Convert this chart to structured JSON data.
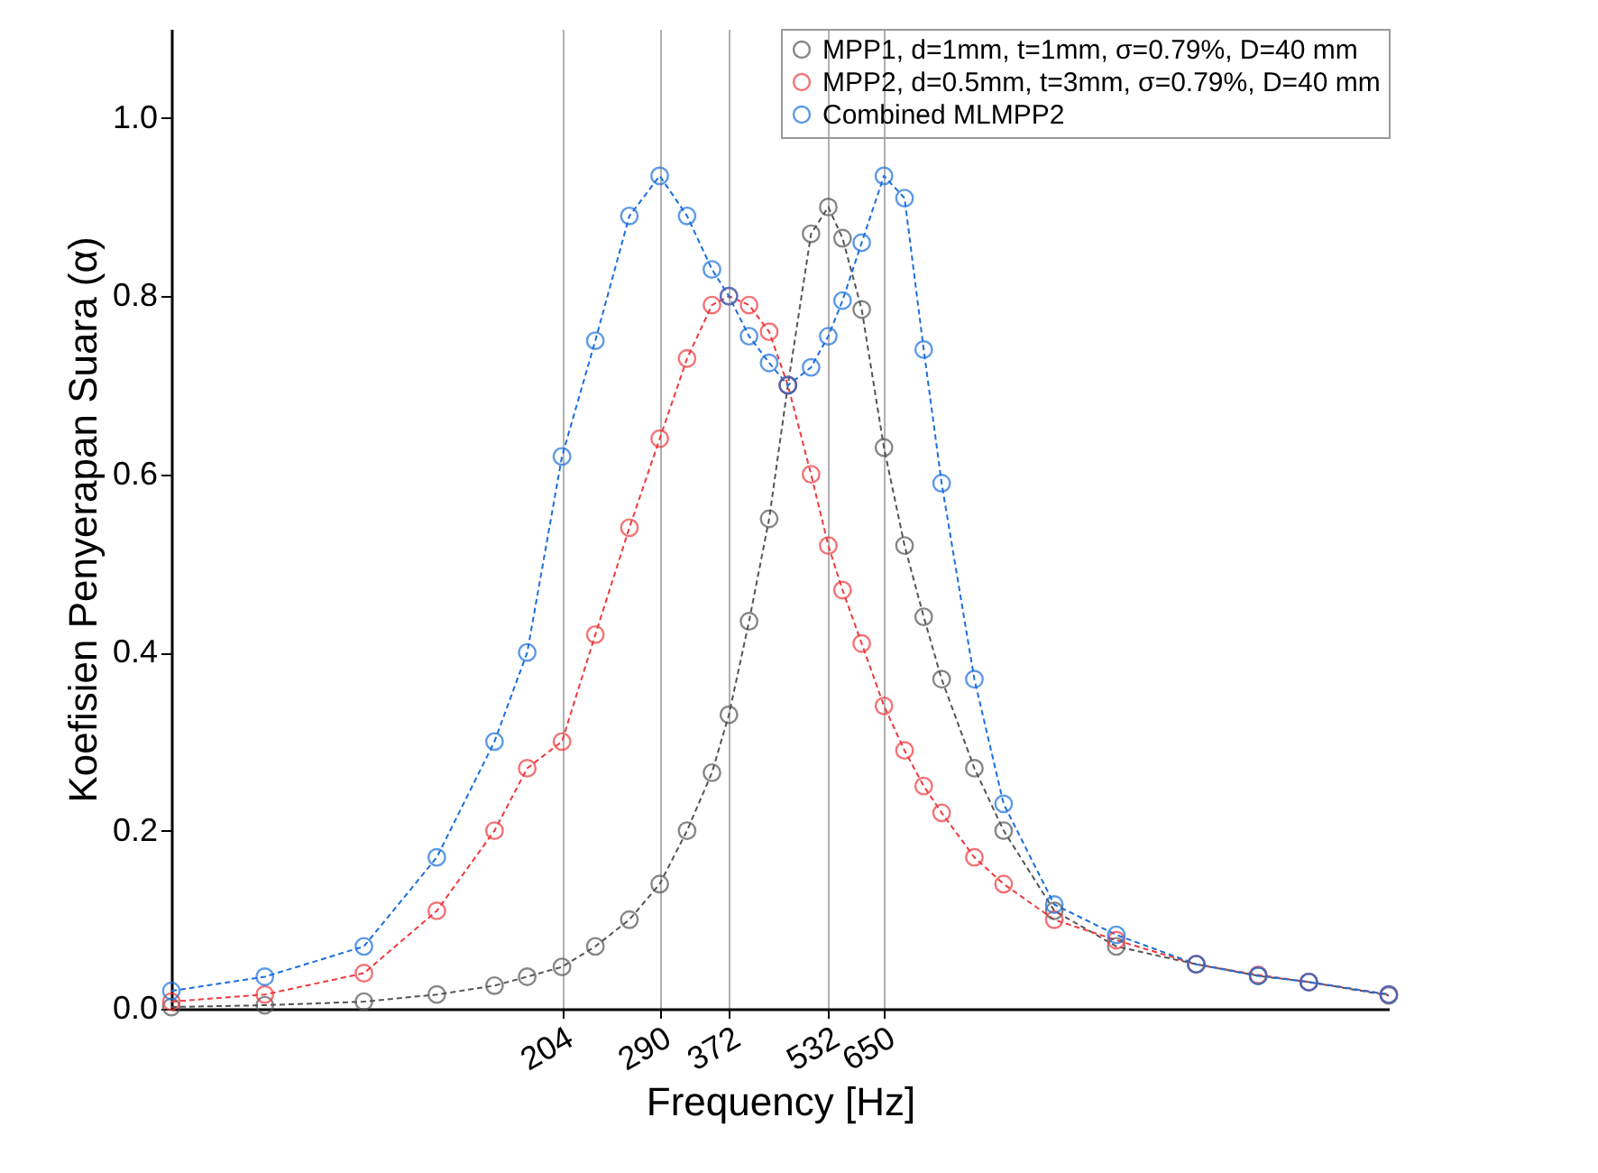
{
  "chart_data": {
    "type": "line",
    "xlabel": "Frequency [Hz]",
    "ylabel": "Koefisien Penyerapan Suara (α)",
    "log": "x",
    "xlim": [
      50,
      4000
    ],
    "xticks": [
      204,
      290,
      372,
      532,
      650
    ],
    "ylim": [
      0,
      1.1
    ],
    "yticks": [
      {
        "value": 0,
        "label": "0.0"
      },
      {
        "value": 0.2,
        "label": "0.2"
      },
      {
        "value": 0.4,
        "label": "0.4"
      },
      {
        "value": 0.6,
        "label": "0.6"
      },
      {
        "value": 0.8,
        "label": "0.8"
      },
      {
        "value": 1,
        "label": "1.0"
      }
    ],
    "grid": "x",
    "legend": "top right",
    "marker": "circle",
    "line_style": "dashed",
    "x": [
      50,
      70,
      100,
      130,
      160,
      180,
      204,
      230,
      260,
      290,
      320,
      350,
      372,
      400,
      430,
      460,
      500,
      532,
      560,
      600,
      650,
      700,
      750,
      800,
      900,
      1000,
      1200,
      1500,
      2000,
      2500,
      3000,
      4000
    ],
    "series": [
      {
        "name": "MPP1, d=1mm, t=1mm, σ=0.79%, D=40 mm",
        "color": "#555555",
        "values": [
          0.002,
          0.004,
          0.008,
          0.016,
          0.026,
          0.036,
          0.047,
          0.07,
          0.1,
          0.14,
          0.2,
          0.265,
          0.33,
          0.435,
          0.55,
          0.7,
          0.87,
          0.9,
          0.865,
          0.785,
          0.63,
          0.52,
          0.44,
          0.37,
          0.27,
          0.2,
          0.11,
          0.07,
          0.05,
          0.037,
          0.03,
          0.015
        ]
      },
      {
        "name": "MPP2, d=0.5mm, t=3mm, σ=0.79%, D=40 mm",
        "color": "#f0393d",
        "values": [
          0.008,
          0.016,
          0.04,
          0.11,
          0.2,
          0.27,
          0.3,
          0.42,
          0.54,
          0.64,
          0.73,
          0.79,
          0.8,
          0.79,
          0.76,
          0.7,
          0.6,
          0.52,
          0.47,
          0.41,
          0.34,
          0.29,
          0.25,
          0.22,
          0.17,
          0.14,
          0.1,
          0.077,
          0.05,
          0.038,
          0.03,
          0.016
        ]
      },
      {
        "name": "Combined MLMPP2",
        "color": "#1a6fde",
        "values": [
          0.02,
          0.036,
          0.07,
          0.17,
          0.3,
          0.4,
          0.62,
          0.75,
          0.89,
          0.935,
          0.89,
          0.83,
          0.8,
          0.755,
          0.725,
          0.7,
          0.72,
          0.755,
          0.795,
          0.86,
          0.935,
          0.91,
          0.74,
          0.59,
          0.37,
          0.23,
          0.117,
          0.083,
          0.05,
          0.037,
          0.03,
          0.016
        ]
      }
    ]
  }
}
